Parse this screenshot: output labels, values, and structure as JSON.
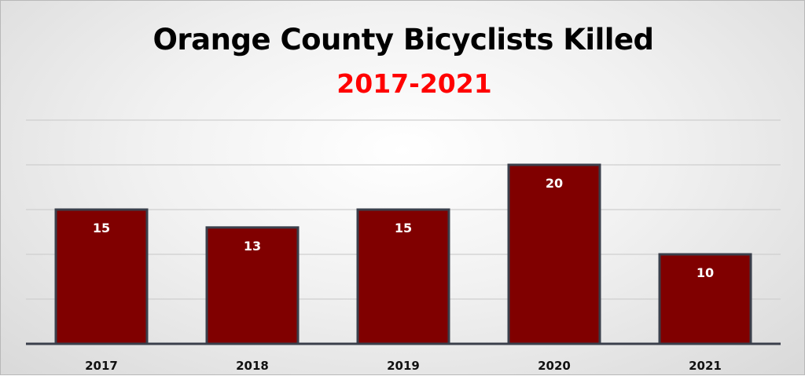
{
  "chart_data": {
    "type": "bar",
    "title": "Orange County Bicyclists Killed",
    "subtitle": "2017-2021",
    "categories": [
      "2017",
      "2018",
      "2019",
      "2020",
      "2021"
    ],
    "values": [
      15,
      13,
      15,
      20,
      10
    ],
    "ylim": [
      0,
      25
    ],
    "grid": true,
    "data_labels": true,
    "legend": "none"
  },
  "colors": {
    "bar_fill": "#800000",
    "bar_outline": "#3a3f4b",
    "subtitle": "#ff0000",
    "gridline": "#cfcfcf",
    "axis": "#3a3f4b"
  }
}
